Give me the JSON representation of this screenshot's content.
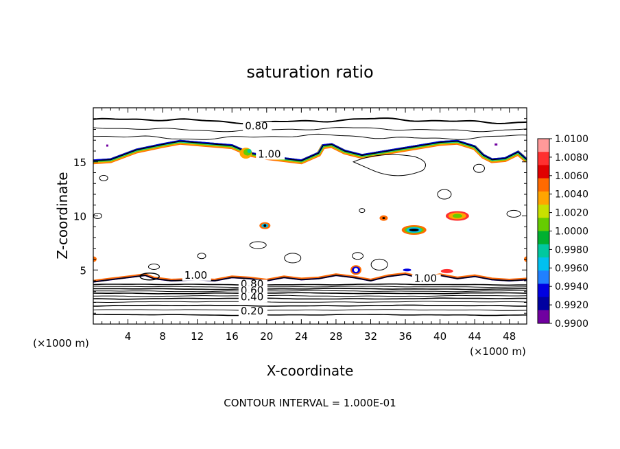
{
  "chart_data": {
    "type": "contour",
    "title": "saturation ratio",
    "xlabel": "X-coordinate",
    "ylabel": "Z-coordinate",
    "x_unit_left": "(×1000 m)",
    "x_unit_right": "(×1000 m)",
    "footer": "CONTOUR INTERVAL = 1.000E-01",
    "xlim": [
      0,
      50
    ],
    "ylim": [
      0,
      20
    ],
    "xticks": [
      "4",
      "8",
      "12",
      "16",
      "20",
      "24",
      "28",
      "32",
      "36",
      "40",
      "44",
      "48"
    ],
    "yticks": [
      "5",
      "10",
      "15"
    ],
    "contour_labels": [
      {
        "text": "0.80",
        "x": 17.5,
        "y": 18.0
      },
      {
        "text": "1.00",
        "x": 19.0,
        "y": 15.4
      },
      {
        "text": "1.00",
        "x": 10.5,
        "y": 4.2
      },
      {
        "text": "1.00",
        "x": 37.0,
        "y": 3.9
      },
      {
        "text": "0.80",
        "x": 17.0,
        "y": 3.4
      },
      {
        "text": "0.60",
        "x": 17.0,
        "y": 2.8
      },
      {
        "text": "0.40",
        "x": 17.0,
        "y": 2.2
      },
      {
        "text": "0.20",
        "x": 17.0,
        "y": 0.9
      }
    ],
    "colorbar": {
      "labels": [
        "1.0100",
        "1.0080",
        "1.0060",
        "1.0040",
        "1.0020",
        "1.0000",
        "0.9980",
        "0.9960",
        "0.9940",
        "0.9920",
        "0.9900"
      ],
      "colors": [
        "#ff9999",
        "#ff3030",
        "#e00000",
        "#ff6a00",
        "#ffa500",
        "#c8e000",
        "#66cc00",
        "#00b030",
        "#00c8a0",
        "#00c0f0",
        "#2080ff",
        "#0000e0",
        "#0000a0",
        "#7000a0"
      ]
    }
  }
}
